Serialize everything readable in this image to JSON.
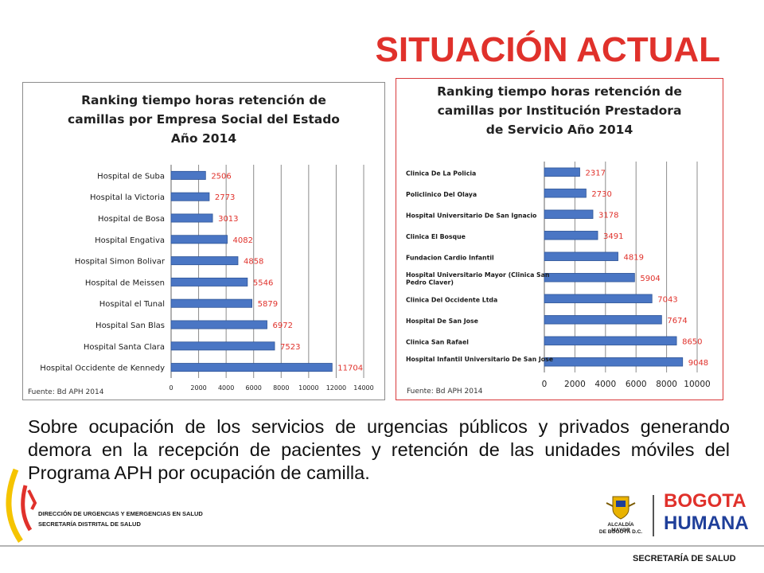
{
  "page": {
    "title": "SITUACIÓN ACTUAL",
    "body_text": "Sobre ocupación de los servicios de urgencias públicos y privados generando demora en la recepción de pacientes y retención de las unidades móviles del Programa APH por ocupación de camilla.",
    "footer": {
      "org_line1": "DIRECCIÓN DE URGENCIAS Y EMERGENCIAS EN SALUD",
      "org_line2": "SECRETARÍA DISTRITAL DE SALUD",
      "alcaldia_line1": "ALCALDÍA MAYOR",
      "alcaldia_line2": "DE BOGOTÁ D.C.",
      "brand_line1": "BOGOTA",
      "brand_line2": "HUMANA",
      "secretaria": "SECRETARÍA DE SALUD"
    }
  },
  "colors": {
    "accent": "#e0312b",
    "bar": "#4a76c4",
    "bar_stroke": "#2f5597",
    "value_label": "#e0312b",
    "grid": "#8c8c8c"
  },
  "chart_data": [
    {
      "type": "bar",
      "orientation": "horizontal",
      "title_lines": [
        "Ranking tiempo horas retención de",
        "camillas por Empresa Social del Estado",
        "Año 2014"
      ],
      "source": "Fuente: Bd APH 2014",
      "categories": [
        "Hospital de Suba",
        "Hospital la Victoria",
        "Hospital de Bosa",
        "Hospital Engativa",
        "Hospital Simon Bolivar",
        "Hospital de Meissen",
        "Hospital el Tunal",
        "Hospital San Blas",
        "Hospital Santa Clara",
        "Hospital Occidente de Kennedy"
      ],
      "values": [
        2506,
        2773,
        3013,
        4082,
        4858,
        5546,
        5879,
        6972,
        7523,
        11704
      ],
      "xlim": [
        0,
        14000
      ],
      "xticks": [
        "0",
        "2000",
        "4000",
        "6000",
        "8000",
        "10000",
        "12000",
        "14000"
      ],
      "grid": true
    },
    {
      "type": "bar",
      "orientation": "horizontal",
      "title_lines": [
        "Ranking tiempo horas retención de",
        "camillas por Institución Prestadora",
        "de Servicio Año 2014"
      ],
      "source": "Fuente: Bd APH 2014",
      "categories": [
        "Clinica De La Policia",
        "Policlinico Del Olaya",
        "Hospital Universitario De San Ignacio",
        "Clinica El Bosque",
        "Fundacion Cardio Infantil",
        "Hospital Universitario Mayor (Clinica San Pedro Claver)",
        "Clinica Del Occidente Ltda",
        "Hospital De San Jose",
        "Clinica San Rafael",
        "Hospital Infantil Universitario De San Jose"
      ],
      "values": [
        2317,
        2730,
        3178,
        3491,
        4819,
        5904,
        7043,
        7674,
        8650,
        9048
      ],
      "xlim": [
        0,
        10000
      ],
      "xticks": [
        "0",
        "2000",
        "4000",
        "6000",
        "8000",
        "10000"
      ],
      "grid": true
    }
  ]
}
